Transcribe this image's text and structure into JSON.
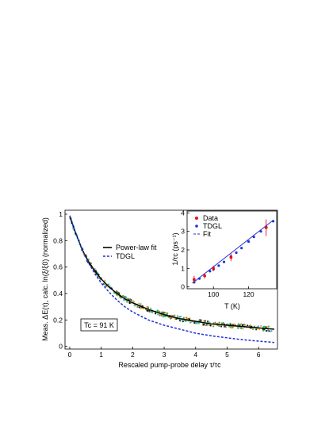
{
  "chart_data": [
    {
      "type": "scatter",
      "xlabel": "Rescaled pump-probe delay τ/τc",
      "ylabel": "Meas. ΔE(τ), calc. ln(ξ/ξ0) (normalized)",
      "xlim": [
        -0.15,
        6.6
      ],
      "ylim": [
        -0.02,
        1.03
      ],
      "xticks": [
        "0",
        "1",
        "2",
        "3",
        "4",
        "5",
        "6"
      ],
      "yticks": [
        "0",
        "0.2",
        "0.4",
        "0.6",
        "0.8",
        "1"
      ],
      "annotation": "Tc = 91 K",
      "legend": {
        "placement": "center",
        "entries": [
          "Power-law fit",
          "TDGL"
        ]
      },
      "series": [
        {
          "name": "Power-law fit",
          "style": "solid",
          "color": "#000000",
          "x": [
            0,
            0.2,
            0.4,
            0.6,
            0.8,
            1.0,
            1.25,
            1.5,
            1.75,
            2.0,
            2.5,
            3.0,
            3.5,
            4.0,
            4.5,
            5.0,
            5.5,
            6.0,
            6.5
          ],
          "y": [
            0.98,
            0.85,
            0.73,
            0.64,
            0.57,
            0.51,
            0.45,
            0.4,
            0.36,
            0.33,
            0.28,
            0.24,
            0.21,
            0.19,
            0.17,
            0.16,
            0.15,
            0.14,
            0.13
          ]
        },
        {
          "name": "TDGL",
          "style": "dashed",
          "color": "#1f2fd6",
          "x": [
            0,
            0.2,
            0.4,
            0.6,
            0.8,
            1.0,
            1.25,
            1.5,
            1.75,
            2.0,
            2.5,
            3.0,
            3.5,
            4.0,
            4.5,
            5.0,
            5.5,
            6.0,
            6.5
          ],
          "y": [
            0.99,
            0.85,
            0.73,
            0.63,
            0.55,
            0.48,
            0.41,
            0.35,
            0.3,
            0.26,
            0.2,
            0.16,
            0.13,
            0.1,
            0.08,
            0.065,
            0.05,
            0.04,
            0.03
          ]
        }
      ],
      "data_colors": [
        "#000000",
        "#f39c12",
        "#2ca02c",
        "#17becf",
        "#8a6d3b"
      ]
    },
    {
      "type": "scatter",
      "xlabel": "T (K)",
      "ylabel": "1/τc (ps⁻¹)",
      "xlim": [
        85,
        136
      ],
      "ylim": [
        -0.1,
        4.1
      ],
      "xticks": [
        "100",
        "120"
      ],
      "yticks": [
        "0",
        "1",
        "2",
        "3",
        "4"
      ],
      "legend": {
        "placement": "top-left",
        "entries": [
          "Data",
          "TDGL",
          "Fit"
        ]
      },
      "series": [
        {
          "name": "Data",
          "color": "#e0151b",
          "x": [
            89,
            95,
            100,
            110,
            130
          ],
          "y": [
            0.4,
            0.6,
            1.0,
            1.6,
            3.2
          ],
          "err": [
            0.2,
            0.15,
            0.15,
            0.2,
            0.45
          ]
        },
        {
          "name": "TDGL",
          "color": "#1f2fd6",
          "x": [
            89,
            92,
            95,
            98,
            100,
            103,
            106,
            110,
            113,
            116,
            120,
            123,
            127,
            130,
            134
          ],
          "y": [
            0.25,
            0.45,
            0.6,
            0.85,
            0.95,
            1.15,
            1.35,
            1.65,
            1.85,
            2.1,
            2.45,
            2.7,
            3.0,
            3.25,
            3.55
          ]
        },
        {
          "name": "Fit",
          "style": "line",
          "color": "#1f2fd6",
          "x": [
            88,
            134
          ],
          "y": [
            0.2,
            3.6
          ]
        }
      ]
    }
  ]
}
